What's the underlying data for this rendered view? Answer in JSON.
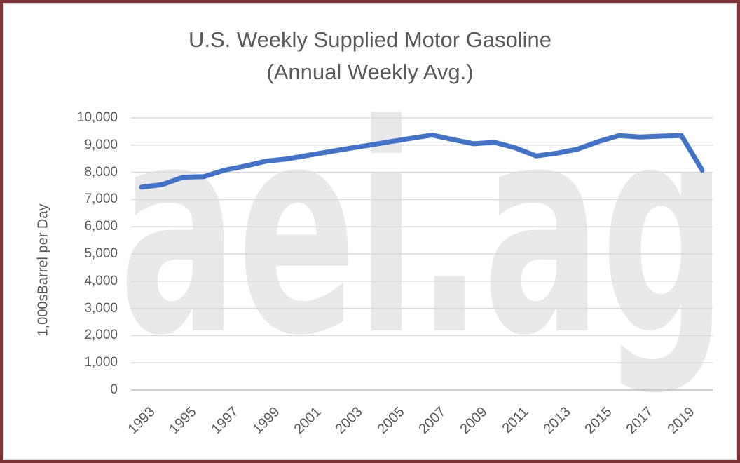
{
  "title": {
    "line1": "U.S. Weekly Supplied Motor Gasoline",
    "line2": "(Annual Weekly Avg.)"
  },
  "watermark": {
    "text": "aei.ag",
    "color": "#E9E9EC"
  },
  "colors": {
    "line": "#4472C4",
    "gridline": "#D9D9D9",
    "axis_line": "#BFBFBF",
    "label_text": "#595959",
    "border": "#7C3134"
  },
  "chart_data": {
    "type": "line",
    "title": "U.S. Weekly Supplied Motor Gasoline (Annual Weekly Avg.)",
    "xlabel": "",
    "ylabel": "1,000sBarrel per Day",
    "ylim": [
      0,
      10000
    ],
    "y_tick_interval": 1000,
    "grid": "horizontal",
    "legend": "none",
    "x": [
      1993,
      1994,
      1995,
      1996,
      1997,
      1998,
      1999,
      2000,
      2001,
      2002,
      2003,
      2004,
      2005,
      2006,
      2007,
      2008,
      2009,
      2010,
      2011,
      2012,
      2013,
      2014,
      2015,
      2016,
      2017,
      2018,
      2019,
      2020
    ],
    "values": [
      7450,
      7550,
      7820,
      7840,
      8080,
      8230,
      8410,
      8490,
      8620,
      8750,
      8880,
      9000,
      9130,
      9250,
      9370,
      9200,
      9050,
      9100,
      8900,
      8600,
      8700,
      8850,
      9130,
      9350,
      9300,
      9330,
      9350,
      8080
    ],
    "y_tick_labels": [
      "0",
      "1,000",
      "2,000",
      "3,000",
      "4,000",
      "5,000",
      "6,000",
      "7,000",
      "8,000",
      "9,000",
      "10,000"
    ],
    "x_tick_labels": [
      "1993",
      "1995",
      "1997",
      "1999",
      "2001",
      "2003",
      "2005",
      "2007",
      "2009",
      "2011",
      "2013",
      "2015",
      "2017",
      "2019"
    ]
  }
}
